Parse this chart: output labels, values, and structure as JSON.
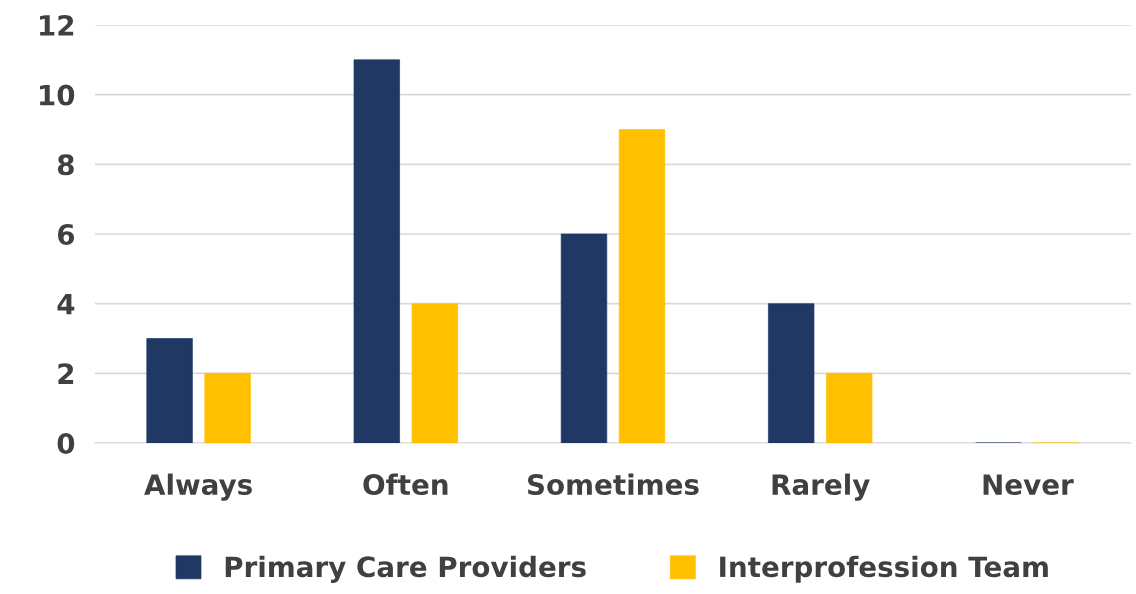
{
  "chart_data": {
    "type": "bar",
    "categories": [
      "Always",
      "Often",
      "Sometimes",
      "Rarely",
      "Never"
    ],
    "series": [
      {
        "name": "Primary Care Providers",
        "color": "#203864",
        "values": [
          3,
          11,
          6,
          4,
          0
        ]
      },
      {
        "name": "Interprofession Team",
        "color": "#ffc000",
        "values": [
          2,
          4,
          9,
          2,
          0
        ]
      }
    ],
    "ylim": [
      0,
      12
    ],
    "yticks": [
      0,
      2,
      4,
      6,
      8,
      10,
      12
    ],
    "grid": "y",
    "legend": "bottom"
  }
}
